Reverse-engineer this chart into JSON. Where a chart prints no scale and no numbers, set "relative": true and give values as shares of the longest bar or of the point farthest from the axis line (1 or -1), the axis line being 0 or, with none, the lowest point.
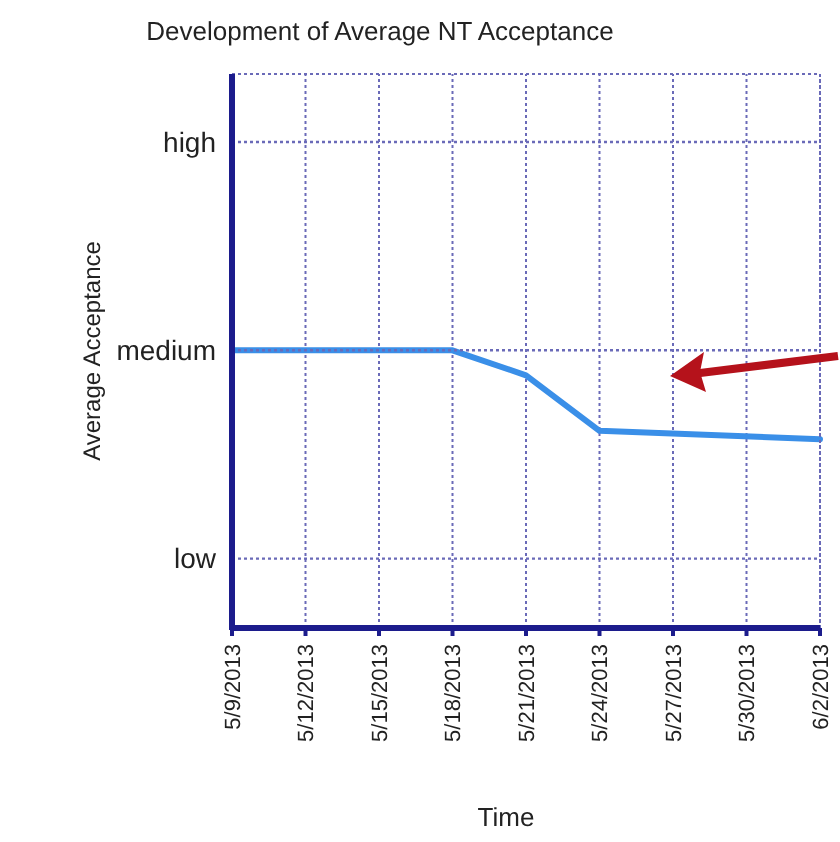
{
  "chart_data": {
    "type": "line",
    "title": "Development of Average NT Acceptance",
    "xlabel": "Time",
    "ylabel": "Average Acceptance",
    "relative": true,
    "x": [
      "2013-05-09",
      "2013-05-18",
      "2013-05-21",
      "2013-05-24",
      "2013-06-02"
    ],
    "series": [
      {
        "color": "#3a8fe8",
        "values": [
          1,
          1,
          0.91,
          0.71,
          0.68
        ]
      }
    ],
    "xlim": [
      "2013-05-09",
      "2013-06-02"
    ],
    "xticks": [
      {
        "value": "2013-05-09",
        "label": "5/9/2013"
      },
      {
        "value": "2013-05-12",
        "label": "5/12/2013"
      },
      {
        "value": "2013-05-15",
        "label": "5/15/2013"
      },
      {
        "value": "2013-05-18",
        "label": "5/18/2013"
      },
      {
        "value": "2013-05-21",
        "label": "5/21/2013"
      },
      {
        "value": "2013-05-24",
        "label": "5/24/2013"
      },
      {
        "value": "2013-05-27",
        "label": "5/27/2013"
      },
      {
        "value": "2013-05-30",
        "label": "5/30/2013"
      },
      {
        "value": "2013-06-02",
        "label": "6/2/2013"
      }
    ],
    "ref_lines": [
      {
        "axis": "y",
        "value": 0.25,
        "label": "low",
        "line_style": "dotted"
      },
      {
        "axis": "y",
        "value": 1,
        "label": "medium",
        "line_style": "dotted"
      },
      {
        "axis": "y",
        "value": 1.75,
        "label": "high",
        "line_style": "dotted"
      }
    ],
    "grid": "x",
    "marker": "none",
    "line_style": "solid"
  }
}
